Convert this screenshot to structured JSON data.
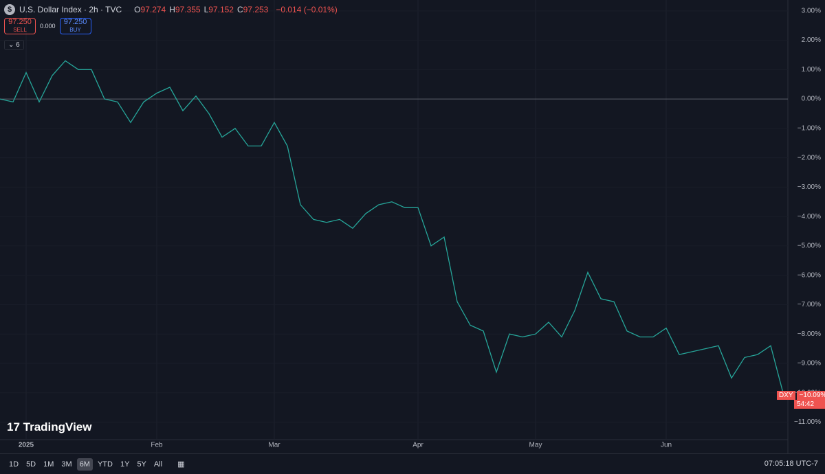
{
  "header": {
    "title": "U.S. Dollar Index · 2h · TVC",
    "ohlc": [
      {
        "label": "O",
        "value": "97.274"
      },
      {
        "label": "H",
        "value": "97.355"
      },
      {
        "label": "L",
        "value": "97.152"
      },
      {
        "label": "C",
        "value": "97.253"
      }
    ],
    "change": "−0.014 (−0.01%)",
    "sell": {
      "price": "97.250",
      "label": "SELL"
    },
    "spread": "0.000",
    "buy": {
      "price": "97.250",
      "label": "BUY"
    },
    "indicators": "6"
  },
  "price_tag": {
    "symbol": "DXY",
    "countdown": "54:42"
  },
  "logo": "TradingView",
  "timeframes": [
    "1D",
    "5D",
    "1M",
    "3M",
    "6M",
    "YTD",
    "1Y",
    "5Y",
    "All"
  ],
  "active_timeframe": "6M",
  "clock": "07:05:18 UTC-7",
  "chart_data": {
    "type": "line",
    "color": "#26a69a",
    "categories": [
      null,
      null,
      "2025",
      null,
      null,
      null,
      null,
      null,
      null,
      null,
      null,
      null,
      "Feb",
      null,
      null,
      null,
      null,
      null,
      null,
      null,
      null,
      "Mar",
      null,
      null,
      null,
      null,
      null,
      null,
      null,
      null,
      null,
      null,
      "Apr",
      null,
      null,
      null,
      null,
      null,
      null,
      null,
      null,
      "May",
      null,
      null,
      null,
      null,
      null,
      null,
      null,
      null,
      null,
      "Jun",
      null,
      null,
      null,
      null,
      null,
      null,
      null,
      null,
      null
    ],
    "values": [
      0,
      -0.1,
      0.9,
      -0.1,
      0.8,
      1.3,
      1.0,
      1.0,
      0.0,
      -0.1,
      -0.8,
      -0.1,
      0.2,
      0.4,
      -0.4,
      0.1,
      -0.5,
      -1.3,
      -1.0,
      -1.6,
      -1.6,
      -0.8,
      -1.6,
      -3.6,
      -4.1,
      -4.2,
      -4.1,
      -4.4,
      -3.9,
      -3.6,
      -3.5,
      -3.7,
      -3.7,
      -5.0,
      -4.7,
      -6.9,
      -7.7,
      -7.9,
      -9.3,
      -8.0,
      -8.1,
      -8.0,
      -7.6,
      -8.1,
      -7.2,
      -5.9,
      -6.8,
      -6.9,
      -7.9,
      -8.1,
      -8.1,
      -7.8,
      -8.7,
      -8.6,
      -8.5,
      -8.4,
      -9.5,
      -8.8,
      -8.7,
      -8.4,
      -10.09
    ],
    "value_labels": [
      null,
      null,
      null,
      null,
      null,
      null,
      null,
      null,
      null,
      null,
      null,
      null,
      null,
      null,
      null,
      null,
      null,
      null,
      null,
      null,
      null,
      null,
      null,
      null,
      null,
      null,
      null,
      null,
      null,
      null,
      null,
      null,
      null,
      null,
      null,
      null,
      null,
      null,
      null,
      null,
      null,
      null,
      null,
      null,
      null,
      null,
      null,
      null,
      null,
      null,
      null,
      null,
      null,
      null,
      null,
      null,
      null,
      null,
      null,
      null,
      "−10.09%"
    ],
    "ylim": [
      -11.55,
      3.37
    ],
    "yticks": [
      {
        "value": 3,
        "label": "3.00%"
      },
      {
        "value": 2,
        "label": "2.00%"
      },
      {
        "value": 1,
        "label": "1.00%"
      },
      {
        "value": 0,
        "label": "0.00%"
      },
      {
        "value": -1,
        "label": "−1.00%"
      },
      {
        "value": -2,
        "label": "−2.00%"
      },
      {
        "value": -3,
        "label": "−3.00%"
      },
      {
        "value": -4,
        "label": "−4.00%"
      },
      {
        "value": -5,
        "label": "−5.00%"
      },
      {
        "value": -6,
        "label": "−6.00%"
      },
      {
        "value": -7,
        "label": "−7.00%"
      },
      {
        "value": -8,
        "label": "−8.00%"
      },
      {
        "value": -9,
        "label": "−9.00%"
      },
      {
        "value": -10,
        "label": "−10.00%"
      },
      {
        "value": -11,
        "label": "−11.00%"
      }
    ],
    "grid": true
  }
}
